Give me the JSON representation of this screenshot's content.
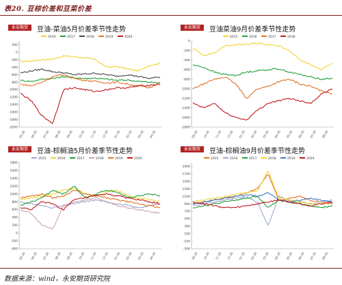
{
  "header": {
    "title": "表20.  豆棕价差和豆菜价差"
  },
  "footer": {
    "source": "数据来源：wind，永安期货研究院"
  },
  "logo_text": "永安期货",
  "chart_data": [
    {
      "type": "line",
      "title": "豆油-菜油5月价差季节性走势",
      "series_names": [
        "2016",
        "2017",
        "2018",
        "2019",
        "2020"
      ],
      "colors": [
        "#f2d230",
        "#1f9e3a",
        "#444444",
        "#e07020",
        "#c0161e"
      ],
      "ylim": [
        -2000,
        300
      ],
      "yticks": [
        -2000,
        -1800,
        -1600,
        -1400,
        -1200,
        -1000,
        -800,
        -600,
        -400,
        -200,
        0,
        200
      ],
      "xticks": [
        "05-26",
        "06-26",
        "07-26",
        "08-26",
        "09-26",
        "10-26",
        "11-26",
        "12-26",
        "01-26",
        "02-26",
        "03-26",
        "04-26"
      ],
      "series": [
        {
          "name": "2016",
          "values": [
            -250,
            -230,
            -200,
            -180,
            -100,
            -120,
            -150,
            -200,
            -400,
            -380,
            -450,
            -500,
            -350,
            -300
          ]
        },
        {
          "name": "2017",
          "values": [
            -750,
            -780,
            -720,
            -700,
            -650,
            -680,
            -700,
            -690,
            -720,
            -750,
            -740,
            -780,
            -800,
            -820
          ]
        },
        {
          "name": "2018",
          "values": [
            -550,
            -500,
            -450,
            -520,
            -550,
            -600,
            -580,
            -560,
            -600,
            -640,
            -600,
            -650,
            -700,
            -660
          ]
        },
        {
          "name": "2019",
          "values": [
            -850,
            -900,
            -800,
            -650,
            -600,
            -700,
            -750,
            -780,
            -820,
            -800,
            -850,
            -900,
            -950,
            -800
          ]
        },
        {
          "name": "2020",
          "values": [
            -1100,
            -1300,
            -1700,
            -1900,
            -1000,
            -950,
            -1000,
            -1050,
            -1000,
            -950,
            -950,
            -900,
            -880,
            -850
          ]
        }
      ]
    },
    {
      "type": "line",
      "title": "豆油菜油9月价差季节性走势",
      "series_names": [
        "2015",
        "2016",
        "2017",
        "2018"
      ],
      "colors": [
        "#f2d230",
        "#1f9e3a",
        "#e07020",
        "#c0161e"
      ],
      "ylim": [
        -1800,
        0
      ],
      "yticks": [
        -1800,
        -1600,
        -1400,
        -1200,
        -1000,
        -800,
        -600,
        -400,
        -200,
        0
      ],
      "xticks": [
        "09-26",
        "10-26",
        "11-26",
        "12-26",
        "01-26",
        "02-26",
        "03-26",
        "04-26",
        "05-26",
        "06-26",
        "07-26",
        "08-26"
      ],
      "series": [
        {
          "name": "2015",
          "values": [
            -150,
            -300,
            -250,
            -100,
            -80,
            -60,
            -50,
            -80,
            -100,
            -200,
            -400,
            -500,
            -600,
            -450
          ]
        },
        {
          "name": "2016",
          "values": [
            -500,
            -550,
            -650,
            -700,
            -720,
            -650,
            -620,
            -600,
            -580,
            -650,
            -700,
            -750,
            -800,
            -780
          ]
        },
        {
          "name": "2017",
          "values": [
            -1000,
            -900,
            -800,
            -750,
            -900,
            -1200,
            -1000,
            -950,
            -850,
            -800,
            -900,
            -950,
            -1050,
            -1100
          ]
        },
        {
          "name": "2018",
          "values": [
            -1300,
            -1400,
            -1300,
            -1500,
            -1600,
            -1650,
            -1450,
            -1300,
            -1250,
            -1200,
            -1250,
            -1300,
            -1100,
            -1000
          ]
        }
      ]
    },
    {
      "type": "line",
      "title": "豆油-棕榈油5月价差季节性走势",
      "series_names": [
        "2015",
        "2016",
        "2017",
        "2018",
        "2019",
        "2020"
      ],
      "colors": [
        "#9aa8c8",
        "#f2d230",
        "#1f9e3a",
        "#c8a0b0",
        "#e07020",
        "#c0161e"
      ],
      "ylim": [
        -400,
        1800
      ],
      "yticks": [
        -400,
        -200,
        0,
        200,
        400,
        600,
        800,
        1000,
        1200,
        1400,
        1600,
        1800
      ],
      "xticks": [
        "05-26",
        "06-26",
        "07-26",
        "08-26",
        "09-26",
        "10-26",
        "11-26",
        "12-26",
        "01-26",
        "02-26",
        "03-26",
        "04-26"
      ],
      "series": [
        {
          "name": "2015",
          "values": [
            800,
            750,
            700,
            650,
            700,
            750,
            800,
            850,
            800,
            750,
            700,
            650,
            700,
            750
          ]
        },
        {
          "name": "2016",
          "values": [
            850,
            900,
            950,
            1000,
            1100,
            1150,
            1000,
            950,
            1050,
            1100,
            950,
            900,
            850,
            800
          ]
        },
        {
          "name": "2017",
          "values": [
            700,
            800,
            900,
            1100,
            1000,
            1200,
            900,
            1000,
            1100,
            1050,
            900,
            950,
            1000,
            950
          ]
        },
        {
          "name": "2018",
          "values": [
            600,
            500,
            200,
            100,
            700,
            800,
            850,
            900,
            800,
            700,
            650,
            600,
            550,
            500
          ]
        },
        {
          "name": "2019",
          "values": [
            900,
            950,
            1000,
            900,
            950,
            1100,
            1000,
            950,
            900,
            850,
            800,
            750,
            700,
            650
          ]
        },
        {
          "name": "2020",
          "values": [
            650,
            600,
            800,
            750,
            600,
            850,
            900,
            950,
            1000,
            950,
            900,
            850,
            800,
            750
          ]
        }
      ]
    },
    {
      "type": "line",
      "title": "豆油-棕榈油9月价差季节性走势",
      "series_names": [
        "2015",
        "2016",
        "2017",
        "2018",
        "2019",
        "2020"
      ],
      "colors": [
        "#e07020",
        "#9aa8c8",
        "#1f9e3a",
        "#f2d230",
        "#3a7ac8",
        "#c0161e"
      ],
      "ylim": [
        -300,
        2000
      ],
      "yticks": [
        -300,
        -100,
        100,
        300,
        500,
        700,
        900,
        1100,
        1300,
        1500,
        1700,
        1900
      ],
      "xticks": [
        "09-26",
        "10-26",
        "11-26",
        "12-26",
        "01-26",
        "02-26",
        "03-26",
        "04-26",
        "05-26",
        "06-26",
        "07-26",
        "08-26"
      ],
      "series": [
        {
          "name": "2015",
          "values": [
            900,
            950,
            1000,
            1050,
            1100,
            1200,
            1300,
            1700,
            1000,
            1050,
            1100,
            1000,
            950,
            900
          ]
        },
        {
          "name": "2016",
          "values": [
            850,
            900,
            950,
            1000,
            1050,
            1100,
            950,
            300,
            1100,
            1000,
            950,
            900,
            950,
            1000
          ]
        },
        {
          "name": "2017",
          "values": [
            800,
            850,
            900,
            950,
            1000,
            1050,
            1100,
            800,
            1000,
            950,
            900,
            850,
            800,
            850
          ]
        },
        {
          "name": "2018",
          "values": [
            950,
            1000,
            1050,
            1100,
            1150,
            1200,
            1250,
            1800,
            1050,
            1000,
            950,
            900,
            900,
            950
          ]
        },
        {
          "name": "2019",
          "values": [
            900,
            950,
            1000,
            1050,
            1100,
            1150,
            1100,
            1200,
            1000,
            950,
            1000,
            1050,
            1000,
            950
          ]
        },
        {
          "name": "2020",
          "values": [
            950,
            900,
            850,
            800,
            800,
            850,
            900,
            950,
            1000,
            950,
            900,
            850,
            900,
            950
          ]
        }
      ]
    }
  ]
}
